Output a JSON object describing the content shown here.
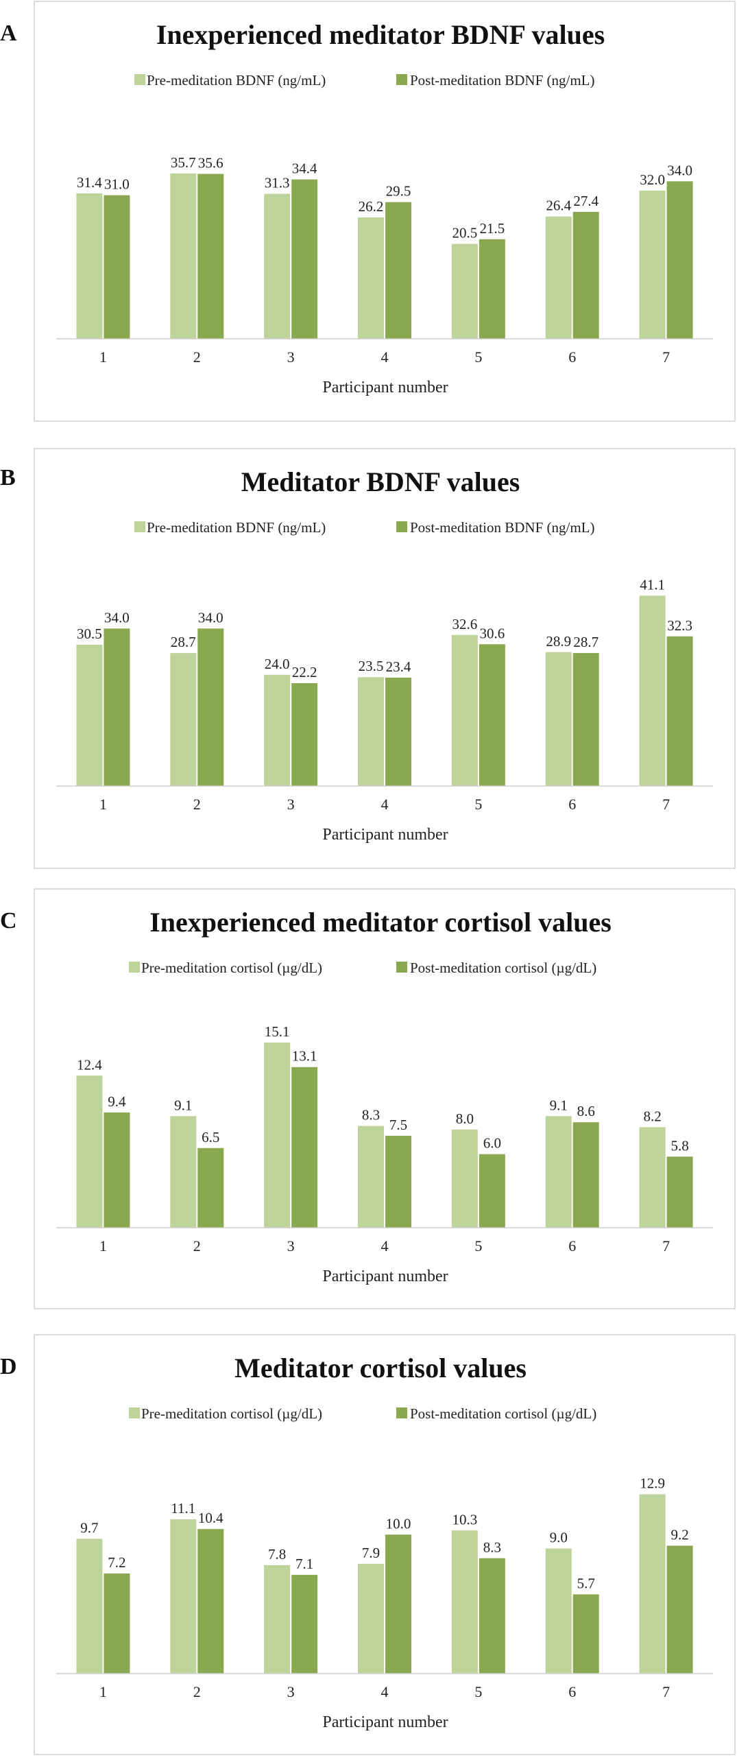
{
  "colors": {
    "pre": "#bdd39a",
    "post": "#8aa84f"
  },
  "chart_data": [
    {
      "panel": "A",
      "type": "bar",
      "title": "Inexperienced meditator BDNF values",
      "xlabel": "Participant number",
      "ylabel": "",
      "ylim": [
        0,
        45
      ],
      "legend_position": "top",
      "categories": [
        "1",
        "2",
        "3",
        "4",
        "5",
        "6",
        "7"
      ],
      "series": [
        {
          "name": "Pre-meditation BDNF (ng/mL)",
          "values": [
            31.4,
            35.7,
            31.3,
            26.2,
            20.5,
            26.4,
            32.0
          ]
        },
        {
          "name": "Post-meditation BDNF (ng/mL)",
          "values": [
            31.0,
            35.6,
            34.4,
            29.5,
            21.5,
            27.4,
            34.0
          ]
        }
      ],
      "data_labels": [
        [
          "31.4",
          "35.7",
          "31.3",
          "26.2",
          "20.5",
          "26.4",
          "32.0"
        ],
        [
          "31.0",
          "35.6",
          "34.4",
          "29.5",
          "21.5",
          "27.4",
          "34.0"
        ]
      ]
    },
    {
      "panel": "B",
      "type": "bar",
      "title": "Meditator BDNF values",
      "xlabel": "Participant number",
      "ylabel": "",
      "ylim": [
        0,
        45
      ],
      "legend_position": "top",
      "categories": [
        "1",
        "2",
        "3",
        "4",
        "5",
        "6",
        "7"
      ],
      "series": [
        {
          "name": "Pre-meditation BDNF (ng/mL)",
          "values": [
            30.5,
            28.7,
            24.0,
            23.5,
            32.6,
            28.9,
            41.1
          ]
        },
        {
          "name": "Post-meditation BDNF (ng/mL)",
          "values": [
            34.0,
            34.0,
            22.2,
            23.4,
            30.6,
            28.7,
            32.3
          ]
        }
      ],
      "data_labels": [
        [
          "30.5",
          "28.7",
          "24.0",
          "23.5",
          "32.6",
          "28.9",
          "41.1"
        ],
        [
          "34.0",
          "34.0",
          "22.2",
          "23.4",
          "30.6",
          "28.7",
          "32.3"
        ]
      ]
    },
    {
      "panel": "C",
      "type": "bar",
      "title": "Inexperienced meditator cortisol values",
      "xlabel": "Participant number",
      "ylabel": "",
      "ylim": [
        0,
        17
      ],
      "legend_position": "top",
      "categories": [
        "1",
        "2",
        "3",
        "4",
        "5",
        "6",
        "7"
      ],
      "series": [
        {
          "name": "Pre-meditation cortisol (µg/dL)",
          "values": [
            12.4,
            9.1,
            15.1,
            8.3,
            8.0,
            9.1,
            8.2
          ]
        },
        {
          "name": "Post-meditation cortisol (µg/dL)",
          "values": [
            9.4,
            6.5,
            13.1,
            7.5,
            6.0,
            8.6,
            5.8
          ]
        }
      ],
      "data_labels": [
        [
          "12.4",
          "9.1",
          "15.1",
          "8.3",
          "8.0",
          "9.1",
          "8.2"
        ],
        [
          "9.4",
          "6.5",
          "13.1",
          "7.5",
          "6.0",
          "8.6",
          "5.8"
        ]
      ]
    },
    {
      "panel": "D",
      "type": "bar",
      "title": "Meditator cortisol values",
      "xlabel": "Participant number",
      "ylabel": "",
      "ylim": [
        0,
        15
      ],
      "legend_position": "top",
      "categories": [
        "1",
        "2",
        "3",
        "4",
        "5",
        "6",
        "7"
      ],
      "series": [
        {
          "name": "Pre-meditation cortisol (µg/dL)",
          "values": [
            9.7,
            11.1,
            7.8,
            7.9,
            10.3,
            9.0,
            12.9
          ]
        },
        {
          "name": "Post-meditation cortisol (µg/dL)",
          "values": [
            7.2,
            10.4,
            7.1,
            10.0,
            8.3,
            5.7,
            9.2
          ]
        }
      ],
      "data_labels": [
        [
          "9.7",
          "11.1",
          "7.8",
          "7.9",
          "10.3",
          "9.0",
          "12.9"
        ],
        [
          "7.2",
          "10.4",
          "7.1",
          "10.0",
          "8.3",
          "5.7",
          "9.2"
        ]
      ]
    }
  ]
}
